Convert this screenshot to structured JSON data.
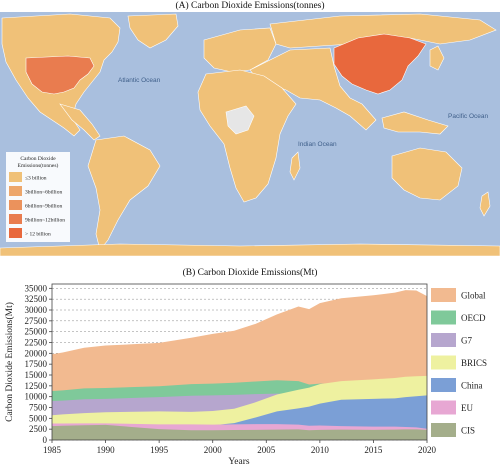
{
  "colors": {
    "ocean": "#a9bfde",
    "land_low": "#f0c178",
    "land_mid": "#eb8e5a",
    "land_high": "#e8683d",
    "nodata": "#e6e6e6"
  },
  "panel_a": {
    "title": "(A) Carbon Dioxide Emissions(tonnes)",
    "ocean_labels": [
      "Atlantic Ocean",
      "Indian Ocean",
      "Pacific Ocean"
    ],
    "legend_title": "Carbon Dioxide Emissions(tonnes)",
    "legend_title_line1": "Carbon Dioxide",
    "legend_title_line2": "Emissions(tonnes)",
    "legend": [
      {
        "label": "≤3 billion",
        "color": "#f0c178"
      },
      {
        "label": "3billion~6billion",
        "color": "#eda66b"
      },
      {
        "label": "6billion~9billion",
        "color": "#eb925c"
      },
      {
        "label": "9billion~12billion",
        "color": "#e97c4f"
      },
      {
        "label": "> 12 billion",
        "color": "#e8683d"
      }
    ]
  },
  "chart_data": {
    "type": "area",
    "title": "(B) Carbon Dioxide Emissions(Mt)",
    "xlabel": "Years",
    "ylabel": "Carbon Dioxide Emissions(Mt)",
    "xlim": [
      1985,
      2020
    ],
    "ylim": [
      0,
      36000
    ],
    "xticks": [
      1985,
      1990,
      1995,
      2000,
      2005,
      2010,
      2015,
      2020
    ],
    "yticks": [
      0,
      2500,
      5000,
      7500,
      10000,
      12500,
      15000,
      17500,
      20000,
      22500,
      25000,
      27500,
      30000,
      32500,
      35000
    ],
    "grid": true,
    "legend_position": "right",
    "x": [
      1985,
      1986,
      1988,
      1990,
      1995,
      1998,
      2000,
      2002,
      2004,
      2006,
      2008,
      2009,
      2010,
      2012,
      2015,
      2017,
      2018,
      2019,
      2020
    ],
    "series": [
      {
        "name": "Global",
        "color": "#f2ba90",
        "values": [
          19800,
          20200,
          21300,
          21800,
          22400,
          23600,
          24500,
          25200,
          26800,
          29000,
          30800,
          30200,
          31600,
          32700,
          33400,
          34000,
          34600,
          34500,
          33200
        ]
      },
      {
        "name": "OECD",
        "color": "#7fc99a",
        "values": [
          11300,
          11450,
          11900,
          12000,
          12400,
          12900,
          13000,
          13200,
          13500,
          13800,
          13600,
          12800,
          13000,
          12900,
          12700,
          12800,
          12800,
          12600,
          11700
        ]
      },
      {
        "name": "G7",
        "color": "#b6a6ce",
        "values": [
          9000,
          9100,
          9400,
          9500,
          9900,
          10200,
          10300,
          10400,
          10600,
          10700,
          10500,
          9700,
          10000,
          9800,
          9600,
          9600,
          9600,
          9300,
          8600
        ]
      },
      {
        "name": "BRICS",
        "color": "#eef1a0",
        "values": [
          5700,
          5900,
          6200,
          6400,
          6600,
          6500,
          6700,
          7200,
          8700,
          10500,
          11600,
          12100,
          12900,
          13600,
          14000,
          14300,
          14600,
          14700,
          14800
        ]
      },
      {
        "name": "China",
        "color": "#7b9fd6",
        "values": [
          2000,
          2100,
          2300,
          2400,
          3000,
          3200,
          3400,
          3900,
          5200,
          6600,
          7300,
          7700,
          8400,
          9300,
          9500,
          9600,
          9900,
          10100,
          10300
        ]
      },
      {
        "name": "EU",
        "color": "#e7a7d3",
        "values": [
          3800,
          3800,
          3850,
          3850,
          3600,
          3600,
          3550,
          3600,
          3650,
          3650,
          3550,
          3300,
          3350,
          3200,
          3100,
          3100,
          3000,
          2900,
          2600
        ]
      },
      {
        "name": "CIS",
        "color": "#a4ae8b",
        "values": [
          3200,
          3300,
          3400,
          3500,
          2500,
          2250,
          2250,
          2300,
          2350,
          2400,
          2450,
          2250,
          2350,
          2400,
          2350,
          2400,
          2450,
          2450,
          2350
        ]
      }
    ]
  }
}
